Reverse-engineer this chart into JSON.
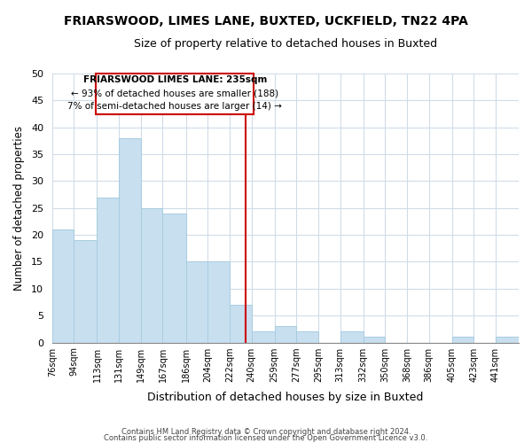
{
  "title": "FRIARSWOOD, LIMES LANE, BUXTED, UCKFIELD, TN22 4PA",
  "subtitle": "Size of property relative to detached houses in Buxted",
  "xlabel": "Distribution of detached houses by size in Buxted",
  "ylabel": "Number of detached properties",
  "bar_color": "#c8dff0",
  "bar_edge_color": "#a8cce0",
  "bin_labels": [
    "76sqm",
    "94sqm",
    "113sqm",
    "131sqm",
    "149sqm",
    "167sqm",
    "186sqm",
    "204sqm",
    "222sqm",
    "240sqm",
    "259sqm",
    "277sqm",
    "295sqm",
    "313sqm",
    "332sqm",
    "350sqm",
    "368sqm",
    "386sqm",
    "405sqm",
    "423sqm",
    "441sqm"
  ],
  "bin_edges": [
    76,
    94,
    113,
    131,
    149,
    167,
    186,
    204,
    222,
    240,
    259,
    277,
    295,
    313,
    332,
    350,
    368,
    386,
    405,
    423,
    441,
    460
  ],
  "counts": [
    21,
    19,
    27,
    38,
    25,
    24,
    15,
    15,
    7,
    2,
    3,
    2,
    0,
    2,
    1,
    0,
    0,
    0,
    1,
    0,
    1
  ],
  "vline_x": 235,
  "vline_color": "#cc0000",
  "annotation_line1": "FRIARSWOOD LIMES LANE: 235sqm",
  "annotation_line2": "← 93% of detached houses are smaller (188)",
  "annotation_line3": "7% of semi-detached houses are larger (14) →",
  "annotation_box_color": "#ffffff",
  "annotation_box_edge": "#cc0000",
  "ylim": [
    0,
    50
  ],
  "yticks": [
    0,
    5,
    10,
    15,
    20,
    25,
    30,
    35,
    40,
    45,
    50
  ],
  "footer_line1": "Contains HM Land Registry data © Crown copyright and database right 2024.",
  "footer_line2": "Contains public sector information licensed under the Open Government Licence v3.0.",
  "background_color": "#ffffff",
  "plot_bg_color": "#ffffff",
  "grid_color": "#d0dce8"
}
